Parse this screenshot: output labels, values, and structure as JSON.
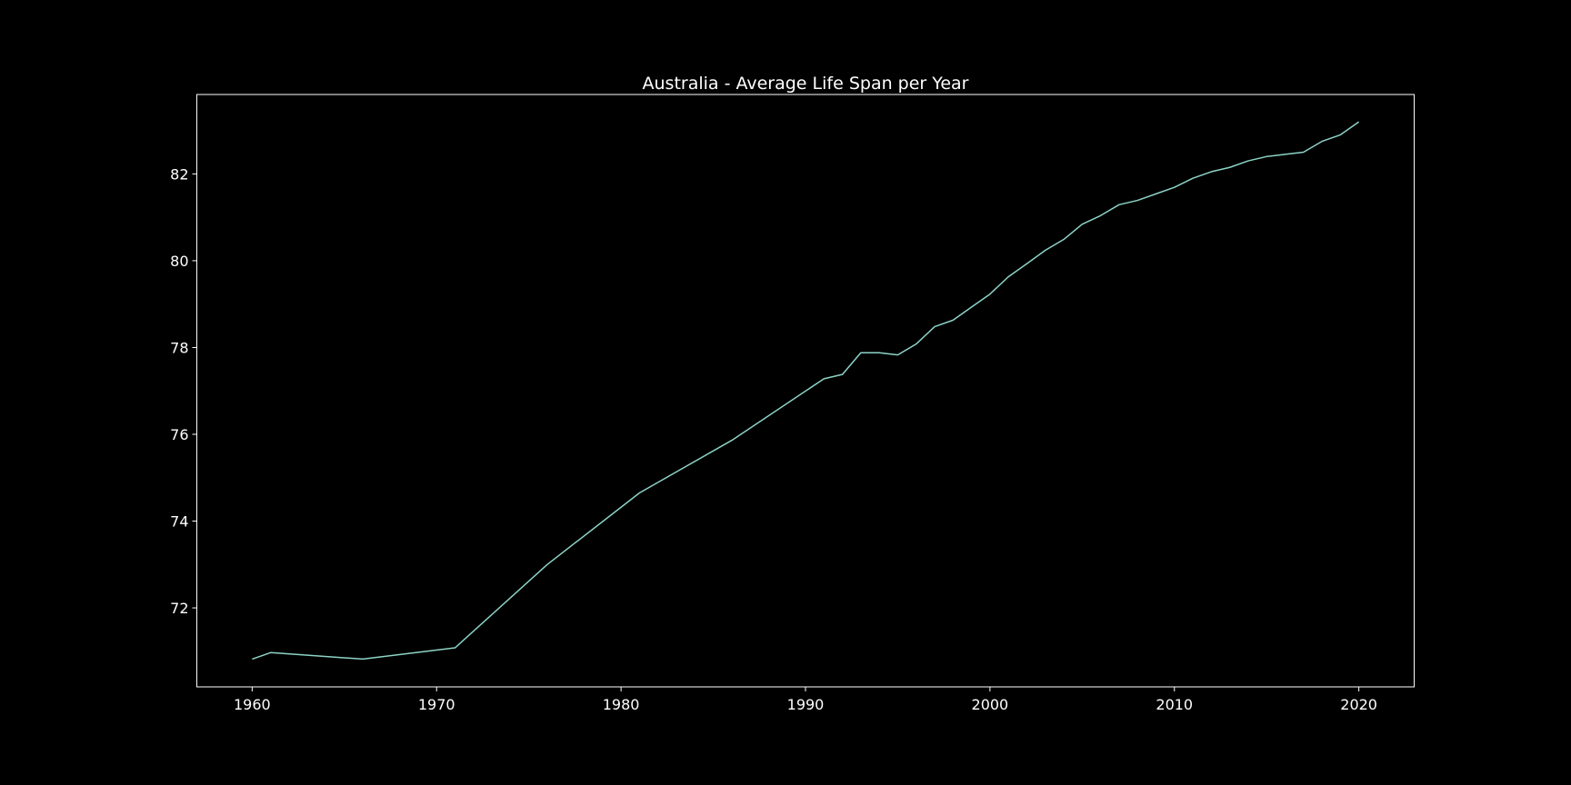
{
  "chart_data": {
    "type": "line",
    "title": "Australia - Average Life Span per Year",
    "xlabel": "",
    "ylabel": "",
    "xlim": [
      1957,
      2023
    ],
    "ylim": [
      70.18,
      83.83
    ],
    "x_ticks": [
      1960,
      1970,
      1980,
      1990,
      2000,
      2010,
      2020
    ],
    "y_ticks": [
      72,
      74,
      76,
      78,
      80,
      82
    ],
    "grid": false,
    "legend": "none",
    "colors": {
      "background": "#000000",
      "axes": "#ffffff",
      "text": "#ffffff",
      "line": "#8dd3c7"
    },
    "series": [
      {
        "x": [
          1960,
          1961,
          1966,
          1971,
          1976,
          1981,
          1986,
          1991,
          1992,
          1993,
          1994,
          1995,
          1996,
          1997,
          1998,
          1999,
          2000,
          2001,
          2002,
          2003,
          2004,
          2005,
          2006,
          2007,
          2008,
          2009,
          2010,
          2011,
          2012,
          2013,
          2014,
          2015,
          2016,
          2017,
          2018,
          2019,
          2020
        ],
        "values": [
          70.82,
          70.97,
          70.82,
          71.08,
          73.0,
          74.65,
          75.86,
          77.28,
          77.38,
          77.88,
          77.88,
          77.83,
          78.08,
          78.48,
          78.63,
          78.93,
          79.23,
          79.63,
          79.93,
          80.24,
          80.49,
          80.84,
          81.04,
          81.29,
          81.39,
          81.54,
          81.69,
          81.9,
          82.05,
          82.15,
          82.3,
          82.4,
          82.45,
          82.5,
          82.75,
          82.9,
          83.2
        ]
      }
    ]
  }
}
